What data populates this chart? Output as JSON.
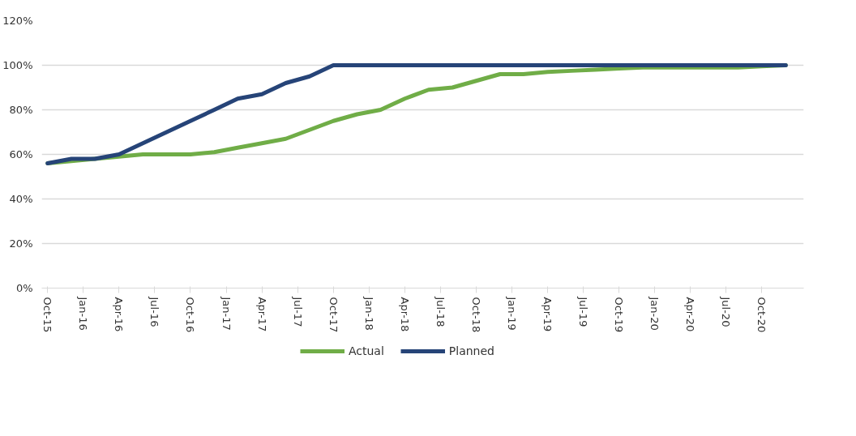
{
  "chart_data": {
    "type": "line",
    "x": [
      "2015-10-16",
      "2015-12-16",
      "2016-02-15",
      "2016-04-16",
      "2016-06-16",
      "2016-08-16",
      "2016-10-16",
      "2016-12-16",
      "2017-02-15",
      "2017-04-16",
      "2017-06-16",
      "2017-08-16",
      "2017-10-16",
      "2017-12-16",
      "2018-02-15",
      "2018-04-16",
      "2018-06-16",
      "2018-08-16",
      "2018-10-16",
      "2018-12-16",
      "2019-02-15",
      "2019-04-16",
      "2019-06-16",
      "2019-08-16",
      "2019-10-16",
      "2019-12-16",
      "2020-02-15",
      "2020-04-16",
      "2020-06-16",
      "2020-08-16",
      "2020-10-16",
      "2020-12-16"
    ],
    "series": [
      {
        "name": "Actual",
        "color": "#70ad47",
        "values": [
          56,
          57,
          58,
          59,
          60,
          60,
          60,
          61,
          63,
          65,
          67,
          71,
          75,
          78,
          80,
          85,
          89,
          90,
          93,
          96,
          96,
          97,
          97.5,
          98,
          98.5,
          99,
          99,
          99,
          99,
          99,
          99.5,
          100
        ]
      },
      {
        "name": "Planned",
        "color": "#264478",
        "values": [
          56,
          58,
          58,
          60,
          65,
          70,
          75,
          80,
          85,
          87,
          92,
          95,
          100,
          100,
          100,
          100,
          100,
          100,
          100,
          100,
          100,
          100,
          100,
          100,
          100,
          100,
          100,
          100,
          100,
          100,
          100,
          100
        ]
      }
    ],
    "xlim": [
      "2015-10-01",
      "2021-02-01"
    ],
    "xticks": [
      {
        "value": "2015-10-16",
        "label": "Oct-15"
      },
      {
        "value": "2016-01-16",
        "label": "Jan-16"
      },
      {
        "value": "2016-04-16",
        "label": "Apr-16"
      },
      {
        "value": "2016-07-16",
        "label": "Jul-16"
      },
      {
        "value": "2016-10-16",
        "label": "Oct-16"
      },
      {
        "value": "2017-01-16",
        "label": "Jan-17"
      },
      {
        "value": "2017-04-16",
        "label": "Apr-17"
      },
      {
        "value": "2017-07-16",
        "label": "Jul-17"
      },
      {
        "value": "2017-10-16",
        "label": "Oct-17"
      },
      {
        "value": "2018-01-16",
        "label": "Jan-18"
      },
      {
        "value": "2018-04-16",
        "label": "Apr-18"
      },
      {
        "value": "2018-07-16",
        "label": "Jul-18"
      },
      {
        "value": "2018-10-16",
        "label": "Oct-18"
      },
      {
        "value": "2019-01-16",
        "label": "Jan-19"
      },
      {
        "value": "2019-04-16",
        "label": "Apr-19"
      },
      {
        "value": "2019-07-16",
        "label": "Jul-19"
      },
      {
        "value": "2019-10-16",
        "label": "Oct-19"
      },
      {
        "value": "2020-01-16",
        "label": "Jan-20"
      },
      {
        "value": "2020-04-16",
        "label": "Apr-20"
      },
      {
        "value": "2020-07-16",
        "label": "Jul-20"
      },
      {
        "value": "2020-10-16",
        "label": "Oct-20"
      }
    ],
    "ylim": [
      0,
      120
    ],
    "yticks": [
      {
        "value": 0,
        "label": "0%"
      },
      {
        "value": 20,
        "label": "20%"
      },
      {
        "value": 40,
        "label": "40%"
      },
      {
        "value": 60,
        "label": "60%"
      },
      {
        "value": 80,
        "label": "80%"
      },
      {
        "value": 100,
        "label": "100%"
      },
      {
        "value": 120,
        "label": "120%"
      }
    ],
    "grid": "y",
    "legend": "bottom",
    "marker": "none",
    "line_style": "solid"
  }
}
